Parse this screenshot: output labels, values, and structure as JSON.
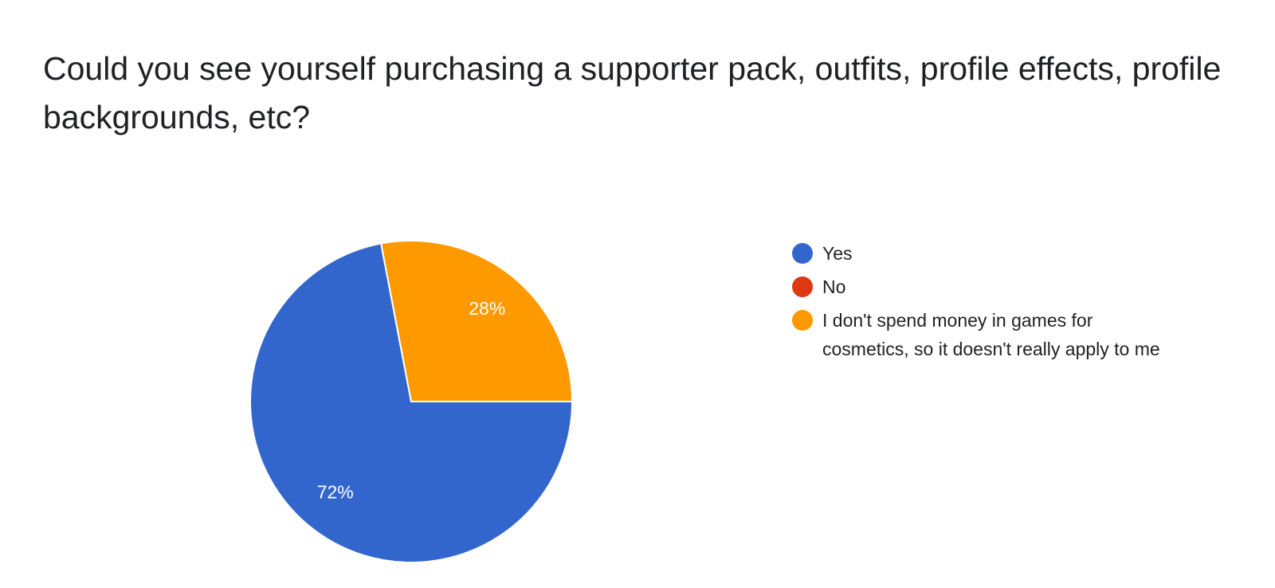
{
  "chart_data": {
    "type": "pie",
    "title": "Could you see yourself purchasing a supporter pack, outfits, profile effects, profile backgrounds, etc?",
    "categories": [
      "Yes",
      "No",
      "I don't spend money in games for cosmetics, so it doesn't really apply to me"
    ],
    "values": [
      72,
      0,
      28
    ],
    "value_labels": [
      "72%",
      null,
      "28%"
    ],
    "colors": [
      "#3366cc",
      "#dc3912",
      "#ff9900"
    ]
  }
}
